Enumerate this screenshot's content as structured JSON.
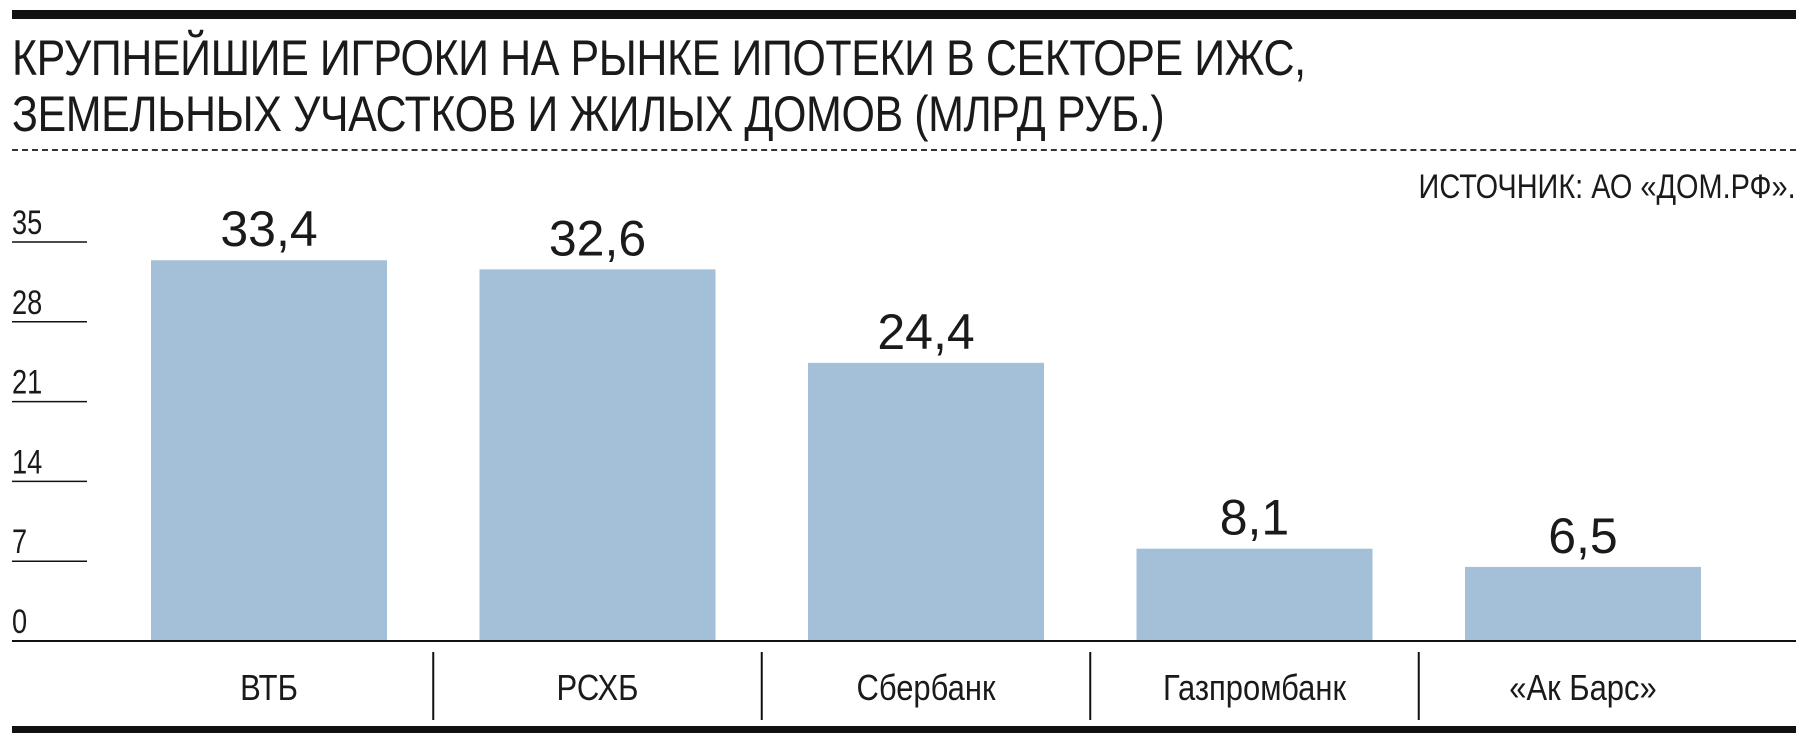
{
  "title_lines": [
    "КРУПНЕЙШИЕ ИГРОКИ НА РЫНКЕ ИПОТЕКИ В СЕКТОРЕ ИЖС,",
    "ЗЕМЕЛЬНЫХ УЧАСТКОВ И ЖИЛЫХ ДОМОВ (МЛРД РУБ.)"
  ],
  "source": "ИСТОЧНИК: АО «ДОМ.РФ».",
  "colors": {
    "bar": "#a3c0d8",
    "text": "#1a1a1a",
    "rule": "#111111"
  },
  "chart_data": {
    "type": "bar",
    "title": "КРУПНЕЙШИЕ ИГРОКИ НА РЫНКЕ ИПОТЕКИ В СЕКТОРЕ ИЖС, ЗЕМЕЛЬНЫХ УЧАСТКОВ И ЖИЛЫХ ДОМОВ (МЛРД РУБ.)",
    "categories": [
      "ВТБ",
      "РСХБ",
      "Сбербанк",
      "Газпромбанк",
      "«Ак Барс»"
    ],
    "values": [
      33.4,
      32.6,
      24.4,
      8.1,
      6.5
    ],
    "value_labels": [
      "33,4",
      "32,6",
      "24,4",
      "8,1",
      "6,5"
    ],
    "yticks": [
      0,
      7,
      14,
      21,
      28,
      35
    ],
    "ytick_labels": [
      "0",
      "7",
      "14",
      "21",
      "28",
      "35"
    ],
    "ylim": [
      0,
      35
    ],
    "grid": false,
    "legend": "none"
  }
}
